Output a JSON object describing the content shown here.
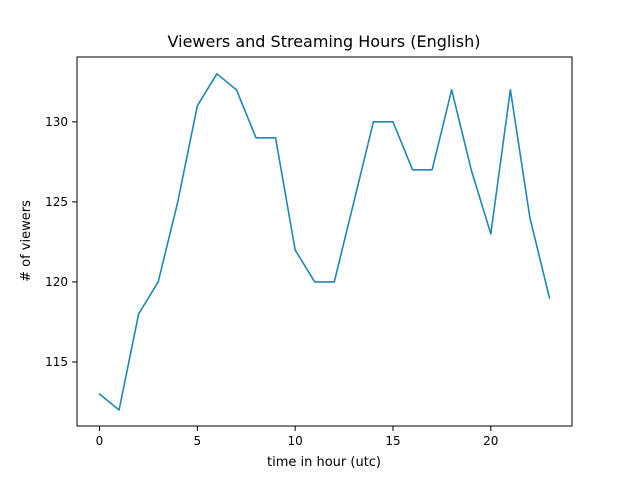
{
  "chart_data": {
    "type": "line",
    "title": "Viewers and Streaming Hours (English)",
    "xlabel": "time in hour (utc)",
    "ylabel": "# of viewers",
    "xlim": [
      -1.15,
      24.15
    ],
    "ylim": [
      111.0,
      134.05
    ],
    "xticks": [
      0,
      5,
      10,
      15,
      20
    ],
    "yticks": [
      115,
      120,
      125,
      130
    ],
    "grid": false,
    "series": [
      {
        "color": "#1f87b8",
        "x": [
          0,
          1,
          2,
          3,
          4,
          5,
          6,
          7,
          8,
          9,
          10,
          11,
          12,
          13,
          14,
          15,
          16,
          17,
          18,
          19,
          20,
          21,
          22,
          23
        ],
        "y": [
          113,
          112,
          118,
          120,
          125,
          131,
          133,
          132,
          129,
          129,
          122,
          120,
          120,
          125,
          130,
          130,
          127,
          127,
          132,
          127,
          123,
          132,
          124,
          119
        ]
      }
    ]
  }
}
